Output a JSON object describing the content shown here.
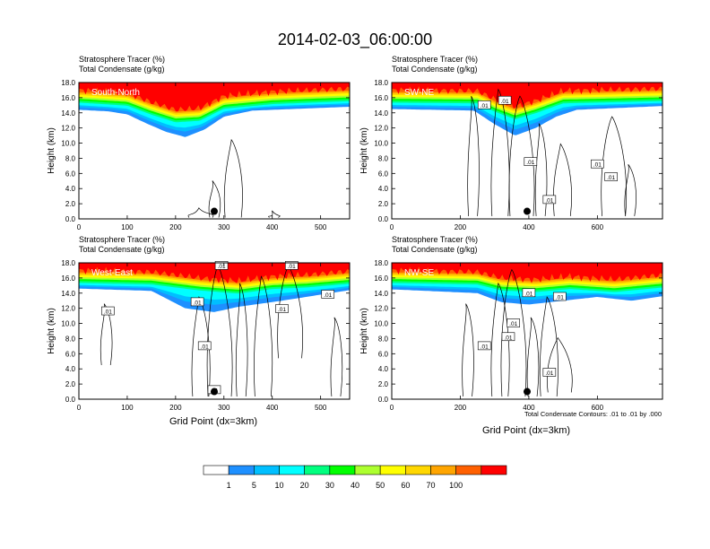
{
  "title": "2014-02-03_06:00:00",
  "panel_titles": {
    "line1": "Stratosphere Tracer   (%)",
    "line2": "Total Condensate   (g/kg)"
  },
  "ylabel": "Height (km)",
  "xlabel": "Grid Point (dx=3km)",
  "contour_note": "Total Condensate Contours: .01 to .01 by .000",
  "contour_label": ".01",
  "colors": {
    "bins": [
      "#ffffff",
      "#1e90ff",
      "#00bfff",
      "#00ffff",
      "#00ff7f",
      "#00ff00",
      "#adff2f",
      "#ffff00",
      "#ffd700",
      "#ffa500",
      "#ff6000",
      "#ff0000"
    ],
    "contour": "#000000"
  },
  "colorbar": {
    "labels": [
      "1",
      "5",
      "10",
      "20",
      "30",
      "40",
      "50",
      "60",
      "70",
      "100"
    ]
  },
  "chart_data": [
    {
      "type": "heatmap",
      "name": "South-North",
      "xlim": [
        0,
        560
      ],
      "ylim": [
        0,
        18
      ],
      "xticks": [
        "0",
        "100",
        "200",
        "300",
        "400",
        "500"
      ],
      "yticks": [
        "0.0",
        "2.0",
        "4.0",
        "6.0",
        "8.0",
        "10.0",
        "12.0",
        "14.0",
        "16.0",
        "18.0"
      ],
      "tropopause_km": [
        [
          0,
          15.4
        ],
        [
          100,
          15.0
        ],
        [
          150,
          13.8
        ],
        [
          200,
          12.8
        ],
        [
          250,
          13.0
        ],
        [
          300,
          14.6
        ],
        [
          400,
          15.2
        ],
        [
          560,
          15.6
        ]
      ],
      "dip_bottom_km": [
        [
          0,
          14.4
        ],
        [
          60,
          14.2
        ],
        [
          100,
          13.8
        ],
        [
          140,
          12.6
        ],
        [
          180,
          11.5
        ],
        [
          220,
          10.8
        ],
        [
          260,
          11.8
        ],
        [
          300,
          13.5
        ],
        [
          360,
          14.3
        ],
        [
          560,
          14.8
        ]
      ],
      "marker": {
        "x": 280,
        "y": 1.0
      },
      "contour_labels": []
    },
    {
      "type": "heatmap",
      "name": "SW-NE",
      "xlim": [
        0,
        790
      ],
      "ylim": [
        0,
        18
      ],
      "xticks": [
        "0",
        "200",
        "400",
        "600"
      ],
      "yticks": [
        "0.0",
        "2.0",
        "4.0",
        "6.0",
        "8.0",
        "10.0",
        "12.0",
        "14.0",
        "16.0",
        "18.0"
      ],
      "tropopause_km": [
        [
          0,
          15.4
        ],
        [
          250,
          15.3
        ],
        [
          300,
          14.2
        ],
        [
          360,
          13.2
        ],
        [
          420,
          14.0
        ],
        [
          500,
          15.3
        ],
        [
          790,
          15.6
        ]
      ],
      "dip_bottom_km": [
        [
          0,
          14.5
        ],
        [
          240,
          14.3
        ],
        [
          300,
          12.5
        ],
        [
          360,
          11.0
        ],
        [
          420,
          12.0
        ],
        [
          480,
          13.5
        ],
        [
          540,
          14.4
        ],
        [
          790,
          14.9
        ]
      ],
      "marker": {
        "x": 395,
        "y": 1.0
      },
      "contour_labels": [
        [
          270,
          15.0
        ],
        [
          330,
          15.6
        ],
        [
          405,
          7.5
        ],
        [
          460,
          2.5
        ],
        [
          600,
          7.2
        ],
        [
          640,
          5.5
        ]
      ]
    },
    {
      "type": "heatmap",
      "name": "West-East",
      "xlim": [
        0,
        560
      ],
      "ylim": [
        0,
        18
      ],
      "xticks": [
        "0",
        "100",
        "200",
        "300",
        "400",
        "500"
      ],
      "yticks": [
        "0.0",
        "2.0",
        "4.0",
        "6.0",
        "8.0",
        "10.0",
        "12.0",
        "14.0",
        "16.0",
        "18.0"
      ],
      "tropopause_km": [
        [
          0,
          15.4
        ],
        [
          150,
          15.2
        ],
        [
          250,
          14.4
        ],
        [
          330,
          14.0
        ],
        [
          400,
          14.6
        ],
        [
          470,
          14.8
        ],
        [
          560,
          15.3
        ]
      ],
      "dip_bottom_km": [
        [
          0,
          14.6
        ],
        [
          150,
          14.3
        ],
        [
          220,
          12.0
        ],
        [
          280,
          11.5
        ],
        [
          330,
          12.2
        ],
        [
          420,
          13.0
        ],
        [
          500,
          13.8
        ],
        [
          560,
          14.4
        ]
      ],
      "marker": {
        "x": 280,
        "y": 1.0
      },
      "contour_labels": [
        [
          60,
          11.6
        ],
        [
          245,
          12.8
        ],
        [
          295,
          17.6
        ],
        [
          440,
          17.6
        ],
        [
          420,
          11.9
        ],
        [
          515,
          13.8
        ],
        [
          260,
          7.0
        ],
        [
          280,
          1.2
        ]
      ]
    },
    {
      "type": "heatmap",
      "name": "NW-SE",
      "xlim": [
        0,
        790
      ],
      "ylim": [
        0,
        18
      ],
      "xticks": [
        "0",
        "200",
        "400",
        "600"
      ],
      "yticks": [
        "0.0",
        "2.0",
        "4.0",
        "6.0",
        "8.0",
        "10.0",
        "12.0",
        "14.0",
        "16.0",
        "18.0"
      ],
      "tropopause_km": [
        [
          0,
          15.4
        ],
        [
          250,
          15.2
        ],
        [
          320,
          14.4
        ],
        [
          420,
          14.2
        ],
        [
          520,
          14.6
        ],
        [
          650,
          14.2
        ],
        [
          790,
          14.8
        ]
      ],
      "dip_bottom_km": [
        [
          0,
          14.5
        ],
        [
          250,
          14.0
        ],
        [
          320,
          12.8
        ],
        [
          400,
          12.5
        ],
        [
          500,
          13.0
        ],
        [
          600,
          13.5
        ],
        [
          700,
          13.0
        ],
        [
          790,
          13.6
        ]
      ],
      "marker": {
        "x": 395,
        "y": 1.0
      },
      "contour_labels": [
        [
          400,
          14.0
        ],
        [
          490,
          13.5
        ],
        [
          355,
          10.0
        ],
        [
          340,
          8.2
        ],
        [
          270,
          7.0
        ],
        [
          460,
          3.5
        ]
      ]
    }
  ]
}
